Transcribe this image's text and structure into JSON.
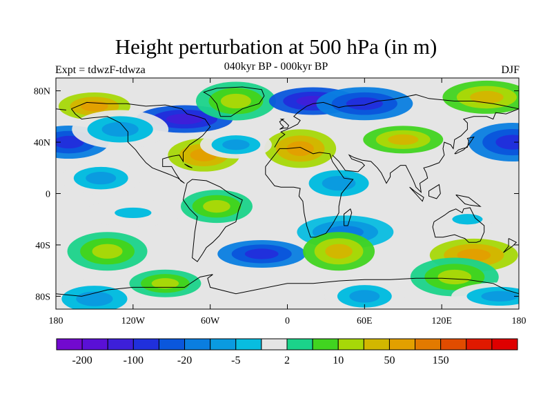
{
  "title": "Height perturbation at 500 hPa (in m)",
  "subtitle": "040kyr BP - 000kyr BP",
  "left_label": "Expt = tdwzF-tdwza",
  "right_label": "DJF",
  "map": {
    "lon_range": [
      -180,
      180
    ],
    "lat_range": [
      -90,
      90
    ],
    "x_ticks": [
      {
        "lon": -180,
        "label": "180"
      },
      {
        "lon": -120,
        "label": "120W"
      },
      {
        "lon": -60,
        "label": "60W"
      },
      {
        "lon": 0,
        "label": "0"
      },
      {
        "lon": 60,
        "label": "60E"
      },
      {
        "lon": 120,
        "label": "120E"
      },
      {
        "lon": 180,
        "label": "180"
      }
    ],
    "y_ticks": [
      {
        "lat": 80,
        "label": "80N"
      },
      {
        "lat": 40,
        "label": "40N"
      },
      {
        "lat": 0,
        "label": "0"
      },
      {
        "lat": -40,
        "label": "40S"
      },
      {
        "lat": -80,
        "label": "80S"
      }
    ]
  },
  "colorbar": {
    "colors": [
      "#7209cf",
      "#5a10d6",
      "#3d1fd9",
      "#2030dc",
      "#0a57dc",
      "#0a7ee0",
      "#0a9be0",
      "#08bde0",
      "#e5e5e5",
      "#1bd38a",
      "#41d420",
      "#a7d808",
      "#d2b700",
      "#e2a000",
      "#e27a00",
      "#e14c00",
      "#e01900",
      "#de0000"
    ],
    "labels": [
      {
        "after_box": 1,
        "text": "-200"
      },
      {
        "after_box": 3,
        "text": "-100"
      },
      {
        "after_box": 5,
        "text": "-20"
      },
      {
        "after_box": 7,
        "text": "-5"
      },
      {
        "after_box": 9,
        "text": "2"
      },
      {
        "after_box": 11,
        "text": "10"
      },
      {
        "after_box": 13,
        "text": "50"
      },
      {
        "after_box": 15,
        "text": "150"
      }
    ]
  },
  "anomaly_fields": [
    {
      "lon": -150,
      "lat": 68,
      "level": 13
    },
    {
      "lon": -170,
      "lat": 40,
      "level": 3
    },
    {
      "lon": 175,
      "lat": 40,
      "level": 3
    },
    {
      "lon": -80,
      "lat": 58,
      "level": 2
    },
    {
      "lon": -65,
      "lat": 30,
      "level": 13
    },
    {
      "lon": -40,
      "lat": 72,
      "level": 11
    },
    {
      "lon": 20,
      "lat": 72,
      "level": 2
    },
    {
      "lon": 60,
      "lat": 70,
      "level": 3
    },
    {
      "lon": 10,
      "lat": 35,
      "level": 13
    },
    {
      "lon": 90,
      "lat": 42,
      "level": 12
    },
    {
      "lon": 155,
      "lat": 75,
      "level": 12
    },
    {
      "lon": -130,
      "lat": 50,
      "level": 6
    },
    {
      "lon": -40,
      "lat": 38,
      "level": 6
    },
    {
      "lon": -145,
      "lat": 12,
      "level": 6
    },
    {
      "lon": 40,
      "lat": 8,
      "level": 6
    },
    {
      "lon": -120,
      "lat": -15,
      "level": 7
    },
    {
      "lon": -55,
      "lat": -10,
      "level": 11
    },
    {
      "lon": -140,
      "lat": -45,
      "level": 11
    },
    {
      "lon": -20,
      "lat": -47,
      "level": 3
    },
    {
      "lon": 45,
      "lat": -30,
      "level": 5
    },
    {
      "lon": 40,
      "lat": -45,
      "level": 12
    },
    {
      "lon": 140,
      "lat": -20,
      "level": 7
    },
    {
      "lon": 145,
      "lat": -48,
      "level": 13
    },
    {
      "lon": -150,
      "lat": -82,
      "level": 6
    },
    {
      "lon": -95,
      "lat": -70,
      "level": 11
    },
    {
      "lon": 60,
      "lat": -80,
      "level": 6
    },
    {
      "lon": 130,
      "lat": -65,
      "level": 11
    },
    {
      "lon": 165,
      "lat": -80,
      "level": 6
    }
  ]
}
